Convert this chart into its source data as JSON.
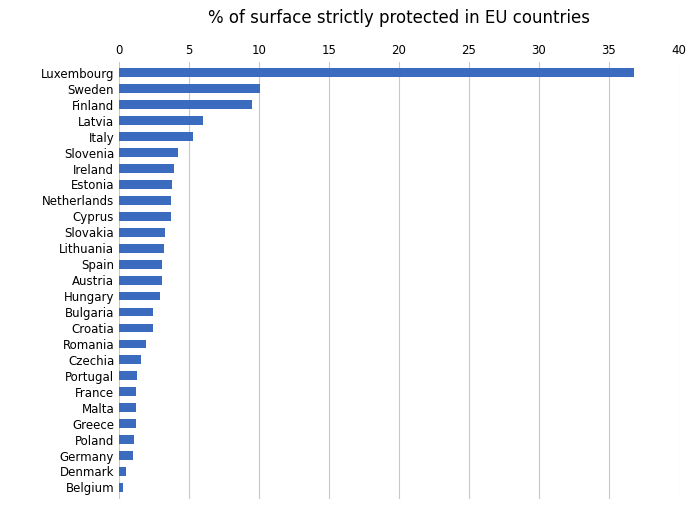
{
  "title": "% of surface strictly protected in EU countries",
  "countries": [
    "Luxembourg",
    "Sweden",
    "Finland",
    "Latvia",
    "Italy",
    "Slovenia",
    "Ireland",
    "Estonia",
    "Netherlands",
    "Cyprus",
    "Slovakia",
    "Lithuania",
    "Spain",
    "Austria",
    "Hungary",
    "Bulgaria",
    "Croatia",
    "Romania",
    "Czechia",
    "Portugal",
    "France",
    "Malta",
    "Greece",
    "Poland",
    "Germany",
    "Denmark",
    "Belgium"
  ],
  "values": [
    36.8,
    10.1,
    9.5,
    6.0,
    5.3,
    4.2,
    3.9,
    3.8,
    3.7,
    3.7,
    3.3,
    3.2,
    3.1,
    3.1,
    2.9,
    2.4,
    2.4,
    1.9,
    1.6,
    1.3,
    1.2,
    1.2,
    1.2,
    1.1,
    1.0,
    0.5,
    0.3
  ],
  "bar_color": "#3a6bbf",
  "xlim": [
    0,
    40
  ],
  "xticks": [
    0,
    5,
    10,
    15,
    20,
    25,
    30,
    35,
    40
  ],
  "title_fontsize": 12,
  "tick_fontsize": 8.5,
  "background_color": "#ffffff",
  "grid_color": "#c8c8c8"
}
